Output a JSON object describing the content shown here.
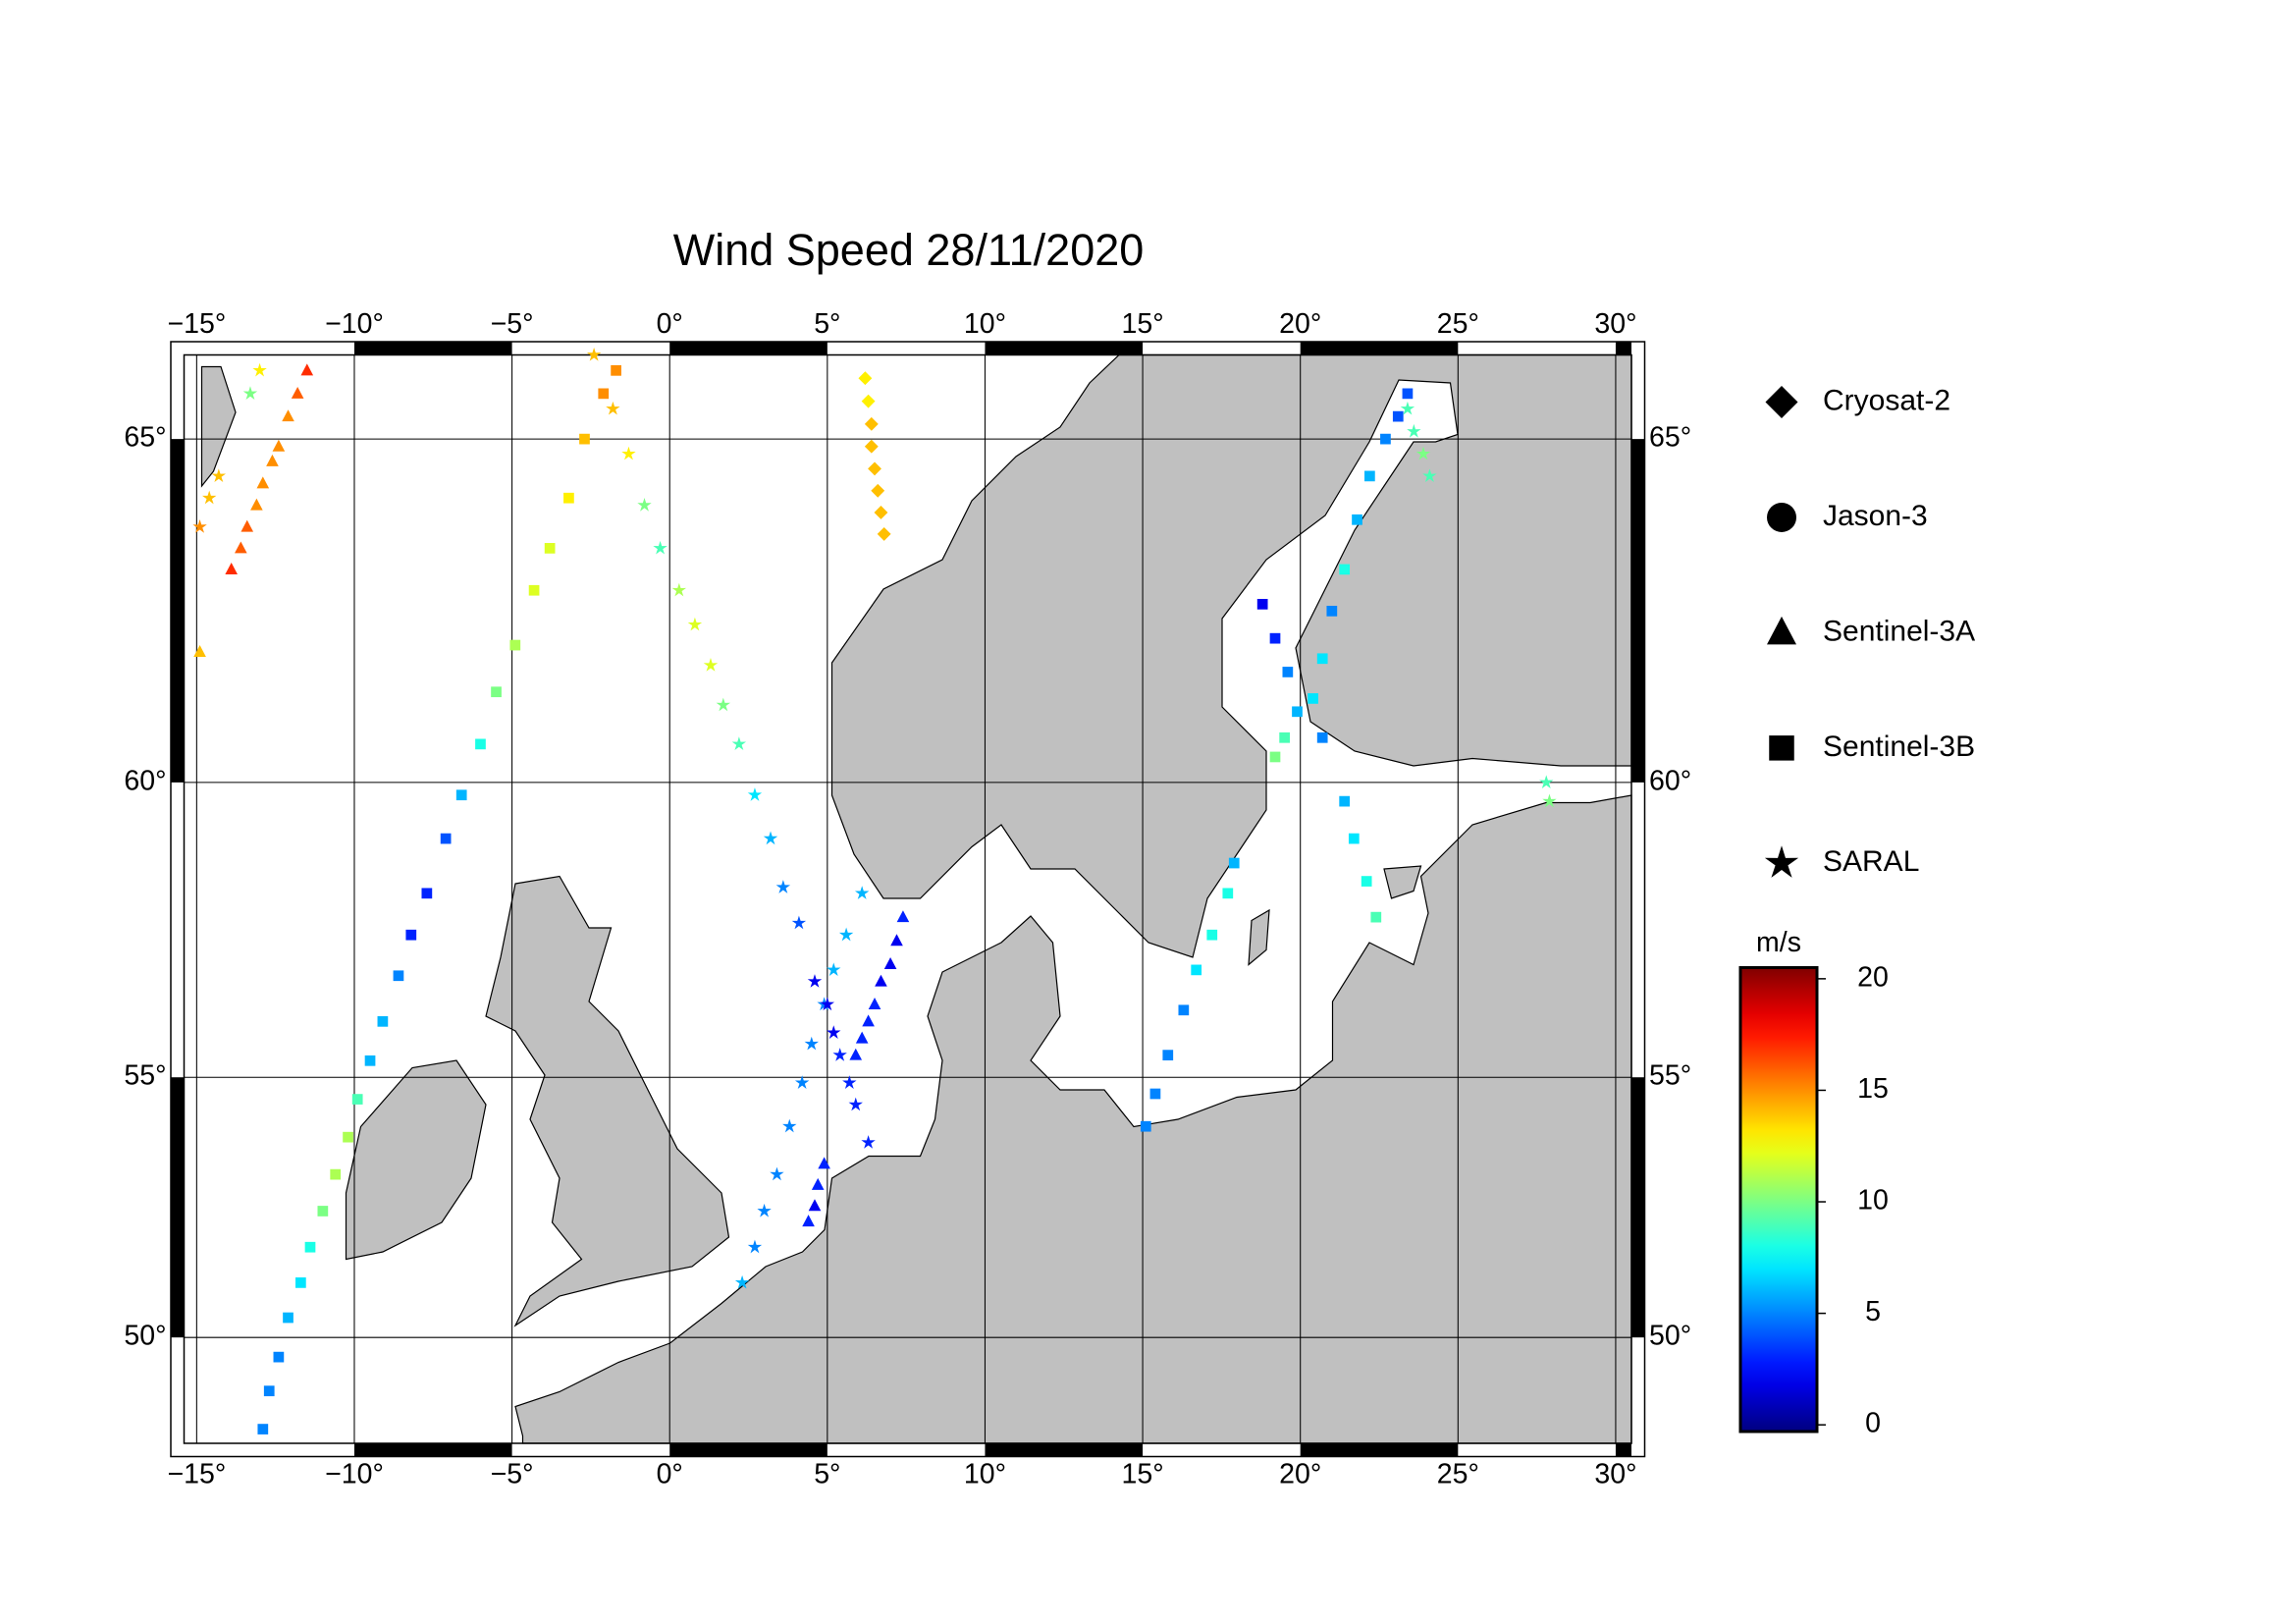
{
  "chart_data": {
    "type": "scatter-map",
    "title": "Wind Speed 28/11/2020",
    "projection": "mercator",
    "xlim": [
      -15.4,
      30.5
    ],
    "ylim": [
      47.8,
      66.1
    ],
    "xticks": [
      {
        "value": -15,
        "label": "−15°"
      },
      {
        "value": -10,
        "label": "−10°"
      },
      {
        "value": -5,
        "label": "−5°"
      },
      {
        "value": 0,
        "label": "0°"
      },
      {
        "value": 5,
        "label": "5°"
      },
      {
        "value": 10,
        "label": "10°"
      },
      {
        "value": 15,
        "label": "15°"
      },
      {
        "value": 20,
        "label": "20°"
      },
      {
        "value": 25,
        "label": "25°"
      },
      {
        "value": 30,
        "label": "30°"
      }
    ],
    "yticks": [
      {
        "value": 50,
        "label": "50°"
      },
      {
        "value": 55,
        "label": "55°"
      },
      {
        "value": 60,
        "label": "60°"
      },
      {
        "value": 65,
        "label": "65°"
      }
    ],
    "grid": true,
    "colormap": "jet",
    "colorbar_label": "m/s",
    "clim": [
      -0.3,
      20.5
    ],
    "cticks": [
      0,
      5,
      10,
      15,
      20
    ],
    "series": [
      {
        "name": "Cryosat-2",
        "marker": "diamond",
        "lon": [
          6.2,
          6.3,
          6.4,
          6.4,
          6.5,
          6.6,
          6.7,
          6.8
        ],
        "lat": [
          65.8,
          65.5,
          65.2,
          64.9,
          64.6,
          64.3,
          64.0,
          63.7
        ],
        "values": [
          13,
          13,
          14,
          14,
          14,
          14,
          14,
          14
        ]
      },
      {
        "name": "Jason-3",
        "marker": "circle",
        "lon": [],
        "lat": [],
        "values": []
      },
      {
        "name": "Sentinel-3A",
        "marker": "triangle",
        "lon": [
          -11.5,
          -11.8,
          -12.1,
          -12.4,
          -12.6,
          -12.9,
          -13.1,
          -13.4,
          -13.6,
          -13.9,
          -14.9,
          7.4,
          7.2,
          7.0,
          6.7,
          6.5,
          6.3,
          6.1,
          5.9,
          4.9,
          4.7,
          4.6,
          4.4
        ],
        "lat": [
          65.9,
          65.6,
          65.3,
          64.9,
          64.7,
          64.4,
          64.1,
          63.8,
          63.5,
          63.2,
          62.0,
          57.8,
          57.4,
          57.0,
          56.7,
          56.3,
          56.0,
          55.7,
          55.4,
          53.4,
          53.0,
          52.6,
          52.3
        ],
        "values": [
          17,
          16,
          15,
          15,
          15,
          15,
          15,
          16,
          16,
          17,
          14,
          3,
          2,
          2,
          2,
          3,
          3,
          3,
          3,
          3,
          3,
          2,
          3
        ]
      },
      {
        "name": "Sentinel-3B",
        "marker": "square",
        "lon": [
          -12.9,
          -12.7,
          -12.4,
          -12.1,
          -11.7,
          -11.4,
          -11.0,
          -10.6,
          -10.2,
          -9.9,
          -9.5,
          -9.1,
          -8.6,
          -8.2,
          -7.7,
          -7.1,
          -6.6,
          -6.0,
          -5.5,
          -4.9,
          -4.3,
          -3.8,
          -3.2,
          -2.7,
          -2.1,
          -1.7,
          15.1,
          15.4,
          15.8,
          16.3,
          16.7,
          17.2,
          17.7,
          17.9,
          22.4,
          22.1,
          21.7,
          21.4,
          20.7,
          20.4,
          20.7,
          21.0,
          21.4,
          21.8,
          22.2,
          22.7,
          23.1,
          23.4,
          18.8,
          19.2,
          19.6,
          19.9,
          19.5,
          19.2
        ],
        "lat": [
          48.1,
          48.9,
          49.6,
          50.4,
          51.1,
          51.8,
          52.5,
          53.2,
          53.9,
          54.6,
          55.3,
          56.0,
          56.8,
          57.5,
          58.2,
          59.1,
          59.8,
          60.6,
          61.4,
          62.1,
          62.9,
          63.5,
          64.2,
          65.0,
          65.6,
          65.9,
          54.1,
          54.7,
          55.4,
          56.2,
          56.9,
          57.5,
          58.2,
          58.7,
          57.8,
          58.4,
          59.1,
          59.7,
          60.7,
          61.3,
          61.9,
          62.6,
          63.2,
          63.9,
          64.5,
          65.0,
          65.3,
          65.6,
          62.7,
          62.2,
          61.7,
          61.1,
          60.7,
          60.4
        ],
        "values": [
          5,
          5,
          5,
          6,
          7,
          8,
          10,
          11,
          11,
          9,
          6,
          6,
          5,
          3,
          3,
          4,
          6,
          8,
          10,
          11,
          12,
          12,
          13,
          14,
          15,
          15,
          5,
          5,
          5,
          5,
          7,
          8,
          8,
          6,
          9,
          8,
          7,
          6,
          5,
          7,
          7,
          5,
          8,
          6,
          6,
          5,
          4,
          4,
          2,
          3,
          5,
          6,
          9,
          10
        ]
      },
      {
        "name": "SARAL",
        "marker": "star",
        "lon": [
          -2.4,
          -1.8,
          -1.3,
          -0.8,
          -0.3,
          0.3,
          0.8,
          1.3,
          1.7,
          2.2,
          2.7,
          3.2,
          3.6,
          4.1,
          4.6,
          2.3,
          2.7,
          3.0,
          3.4,
          3.8,
          4.2,
          4.5,
          4.9,
          5.2,
          5.6,
          6.1,
          5.0,
          5.2,
          5.4,
          5.7,
          5.9,
          6.3,
          23.4,
          23.6,
          23.9,
          24.1,
          27.8,
          27.9,
          -13.0,
          -13.3,
          -14.3,
          -14.6,
          -14.9
        ],
        "lat": [
          66.1,
          65.4,
          64.8,
          64.1,
          63.5,
          62.9,
          62.4,
          61.8,
          61.2,
          60.6,
          59.8,
          59.1,
          58.3,
          57.7,
          56.7,
          51.1,
          51.8,
          52.5,
          53.2,
          54.1,
          54.9,
          55.6,
          56.3,
          56.9,
          57.5,
          58.2,
          56.3,
          55.8,
          55.4,
          54.9,
          54.5,
          53.8,
          65.4,
          65.1,
          64.8,
          64.5,
          60.0,
          59.7,
          65.9,
          65.6,
          64.5,
          64.2,
          63.8
        ],
        "values": [
          14,
          14,
          13,
          10,
          9,
          11,
          12,
          12,
          10,
          9,
          7,
          6,
          5,
          4,
          2,
          6,
          5,
          5,
          5,
          5,
          5,
          5,
          5,
          6,
          6,
          6,
          2,
          2,
          3,
          3,
          3,
          3,
          9,
          9,
          10,
          9,
          9,
          10,
          13,
          10,
          14,
          14,
          15
        ]
      }
    ]
  }
}
